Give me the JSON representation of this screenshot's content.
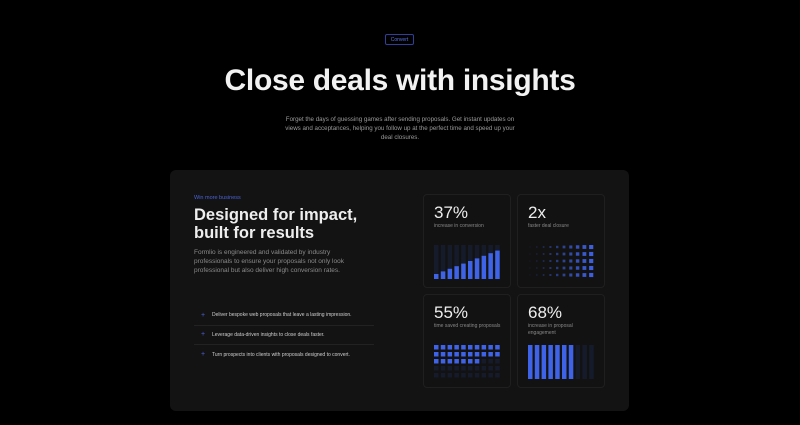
{
  "hero": {
    "badge": "Convert",
    "title": "Close deals with insights",
    "subtitle": "Forget the days of guessing games after sending proposals. Get instant updates on views and acceptances, helping you follow up at the perfect time and speed up your deal closures."
  },
  "feature": {
    "eyebrow": "Win more business",
    "heading": "Designed for impact, built for results",
    "description": "Formlio is engineered and validated by industry professionals to ensure your proposals not only look professional but also deliver high conversion rates.",
    "items": [
      {
        "icon": "plus-icon",
        "text": "Deliver bespoke web proposals that leave a lasting impression."
      },
      {
        "icon": "plus-icon",
        "text": "Leverage data-driven insights to close deals faster."
      },
      {
        "icon": "plus-icon",
        "text": "Turn prospects into clients with proposals designed to convert."
      }
    ]
  },
  "stats": [
    {
      "value": "37%",
      "label": "increase in conversion",
      "viz": "rising-bars"
    },
    {
      "value": "2x",
      "label": "faster deal closure",
      "viz": "gradient-dots"
    },
    {
      "value": "55%",
      "label": "time saved creating proposals",
      "viz": "dot-grid",
      "fill": 0.55
    },
    {
      "value": "68%",
      "label": "increase in proposal engagement",
      "viz": "vertical-bars",
      "fill": 0.68
    }
  ],
  "colors": {
    "accent": "#3f63e8",
    "dim": "#161b2c",
    "background": "#000000",
    "card": "#131313"
  }
}
